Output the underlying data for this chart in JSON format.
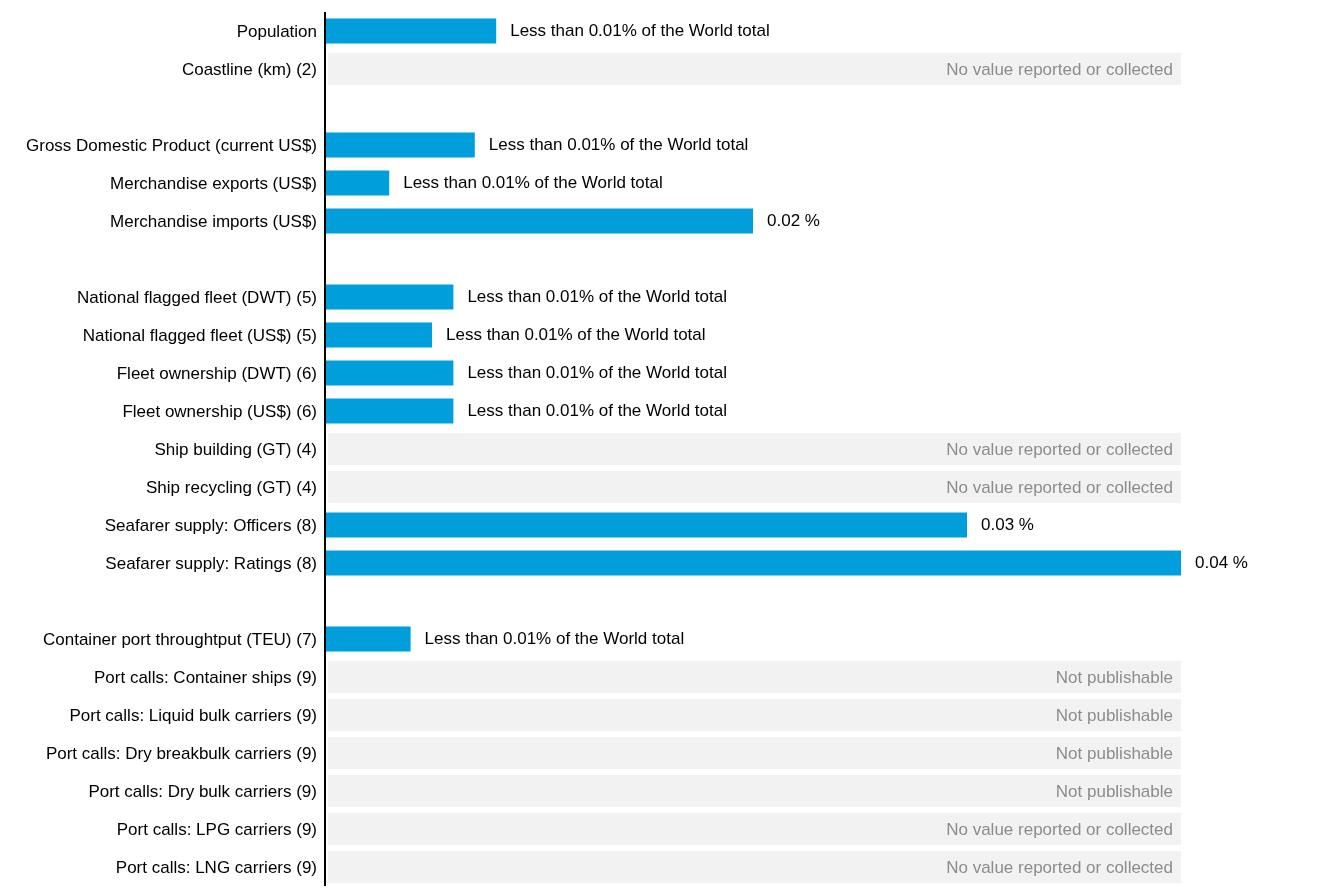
{
  "chart_data": {
    "type": "bar",
    "orientation": "horizontal",
    "tick_labels": "y",
    "xlim": [
      0,
      0.04
    ],
    "color": "#009edb",
    "categories": [
      "Population",
      "Coastline (km) (2)",
      null,
      "Gross Domestic Product (current US$)",
      "Merchandise exports (US$)",
      "Merchandise imports (US$)",
      null,
      "National flagged fleet (DWT) (5)",
      "National flagged fleet (US$) (5)",
      "Fleet ownership (DWT) (6)",
      "Fleet ownership (US$) (6)",
      "Ship building (GT) (4)",
      "Ship recycling (GT) (4)",
      "Seafarer supply: Officers (8)",
      "Seafarer supply: Ratings (8)",
      null,
      "Container port throughtput (TEU) (7)",
      "Port calls: Container ships (9)",
      "Port calls: Liquid bulk carriers (9)",
      "Port calls: Dry breakbulk carriers (9)",
      "Port calls: Dry bulk carriers (9)",
      "Port calls: LPG carriers (9)",
      "Port calls: LNG carriers (9)"
    ],
    "values": [
      0.008,
      null,
      null,
      0.007,
      0.003,
      0.02,
      null,
      0.006,
      0.005,
      0.006,
      0.006,
      null,
      null,
      0.03,
      0.04,
      null,
      0.004,
      null,
      null,
      null,
      null,
      null,
      null
    ],
    "value_labels": [
      "Less than 0.01% of the World total",
      "No value reported or collected",
      null,
      "Less than 0.01% of the World total",
      "Less than 0.01% of the World total",
      "0.02 %",
      null,
      "Less than 0.01% of the World total",
      "Less than 0.01% of the World total",
      "Less than 0.01% of the World total",
      "Less than 0.01% of the World total",
      "No value reported or collected",
      "No value reported or collected",
      "0.03 %",
      "0.04 %",
      null,
      "Less than 0.01% of the World total",
      "Not publishable",
      "Not publishable",
      "Not publishable",
      "Not publishable",
      "No value reported or collected",
      "No value reported or collected"
    ]
  }
}
